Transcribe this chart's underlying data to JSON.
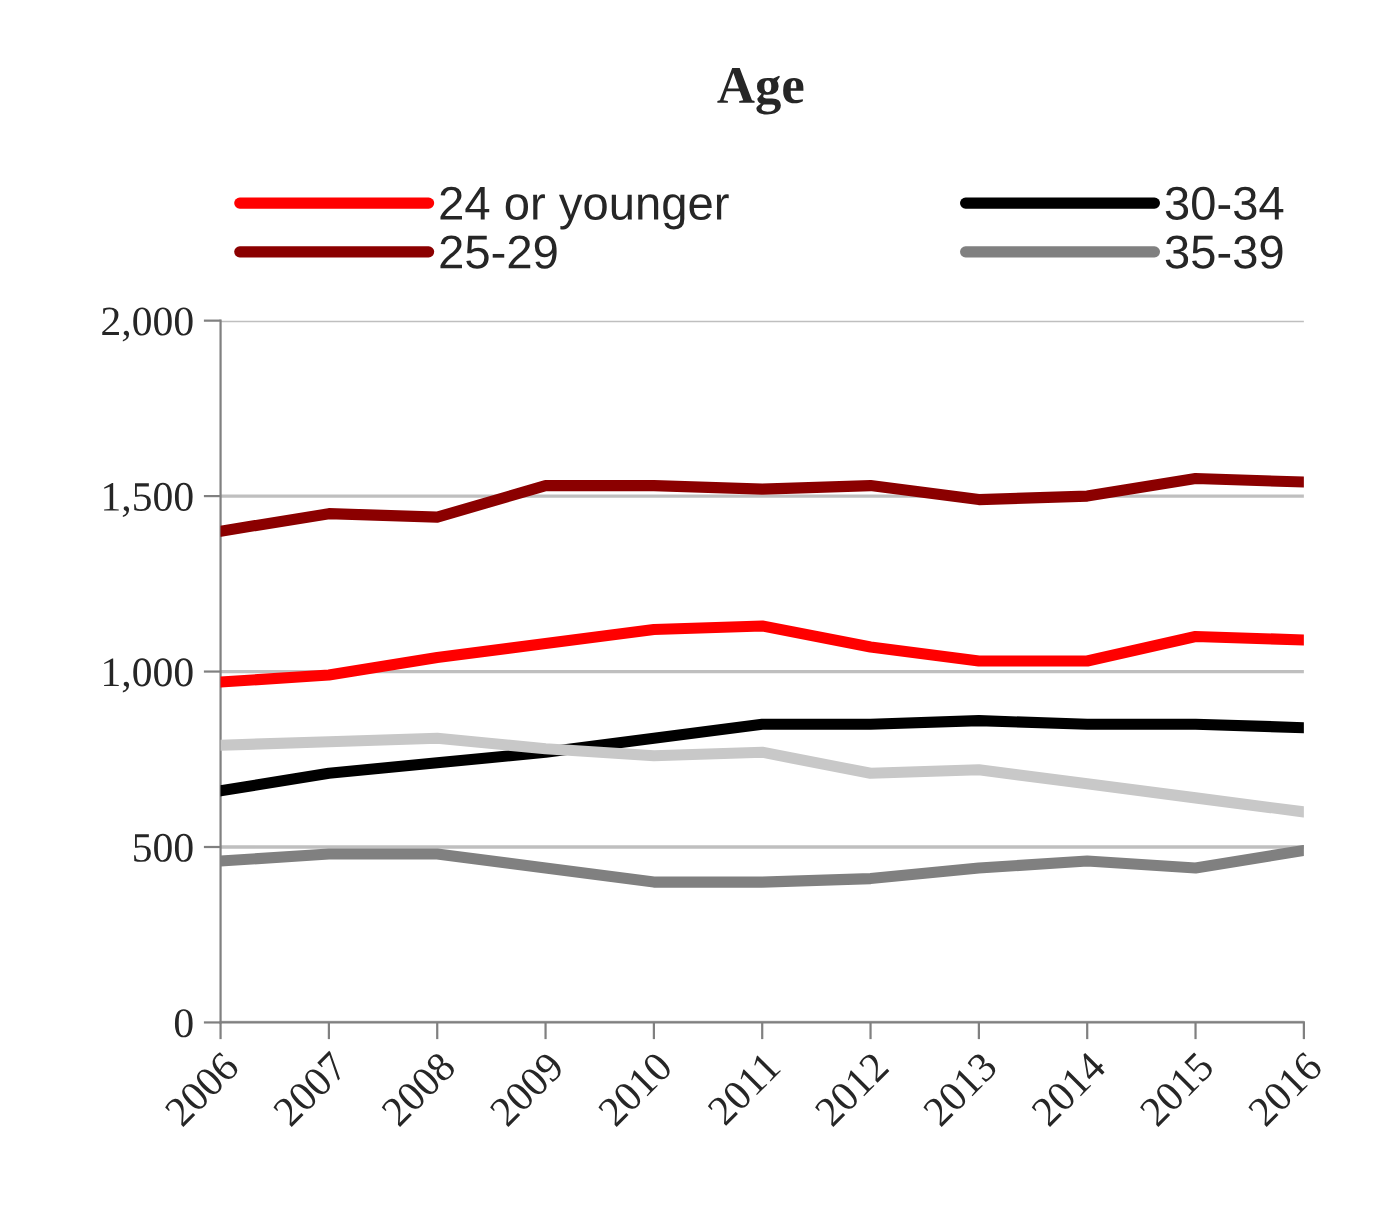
{
  "chart_data": {
    "type": "line",
    "title": "Age",
    "categories": [
      "2006",
      "2007",
      "2008",
      "2009",
      "2010",
      "2011",
      "2012",
      "2013",
      "2014",
      "2015",
      "2016"
    ],
    "series": [
      {
        "name": "24 or younger",
        "color": "#ff0000",
        "values": [
          970,
          990,
          1040,
          1080,
          1120,
          1130,
          1070,
          1030,
          1030,
          1100,
          1090
        ]
      },
      {
        "name": "25-29",
        "color": "#8b0000",
        "values": [
          1400,
          1450,
          1440,
          1530,
          1530,
          1520,
          1530,
          1490,
          1500,
          1550,
          1540
        ]
      },
      {
        "name": "30-34",
        "color": "#000000",
        "values": [
          660,
          710,
          740,
          770,
          810,
          850,
          850,
          860,
          850,
          850,
          840
        ]
      },
      {
        "name": "35-39",
        "color": "#808080",
        "values": [
          460,
          480,
          480,
          440,
          400,
          400,
          410,
          440,
          460,
          440,
          490
        ]
      },
      {
        "color": "#c8c8c8",
        "values": [
          790,
          800,
          810,
          780,
          760,
          770,
          710,
          720,
          680,
          640,
          600
        ]
      }
    ],
    "ylim": [
      0,
      2000
    ],
    "yticks": [
      0,
      {
        "value": 500,
        "label": "500"
      },
      {
        "value": 1000,
        "label": "1,000"
      },
      {
        "value": 1500,
        "label": "1,500"
      },
      {
        "value": 2000,
        "label": "2,000"
      }
    ],
    "grid": "y",
    "legend": "top",
    "marker": "none",
    "line_style": "solid"
  }
}
